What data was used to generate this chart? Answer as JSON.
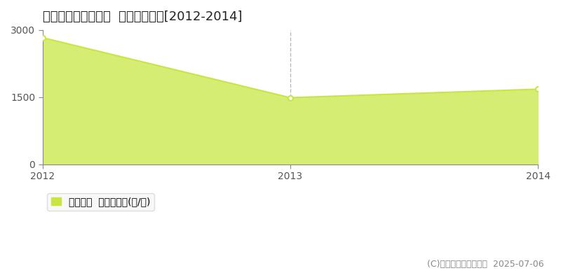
{
  "title": "勇払郡むかわ町春日  農地価格推移[2012-2014]",
  "years": [
    2012,
    2013,
    2014
  ],
  "values": [
    2830,
    1490,
    1680
  ],
  "line_color": "#c8e642",
  "fill_color": "#d4ed72",
  "fill_alpha": 1.0,
  "marker_color": "#ffffff",
  "marker_edge_color": "#c8e642",
  "ylim": [
    0,
    3000
  ],
  "xlim": [
    2012,
    2014
  ],
  "yticks": [
    0,
    1500,
    3000
  ],
  "xticks": [
    2012,
    2013,
    2014
  ],
  "vline_x": 2013,
  "vline_color": "#bbbbbb",
  "vline_style": "--",
  "hline_y": 1500,
  "hline_color": "#bbbbbb",
  "hline_style": "--",
  "legend_label": "農地価格  平均坪単価(円/坪)",
  "legend_color": "#c8e642",
  "copyright_text": "(C)土地価格ドットコム  2025-07-06",
  "bg_color": "#ffffff",
  "plot_bg_color": "#ffffff",
  "title_fontsize": 13,
  "tick_fontsize": 10,
  "legend_fontsize": 10,
  "copyright_fontsize": 9
}
